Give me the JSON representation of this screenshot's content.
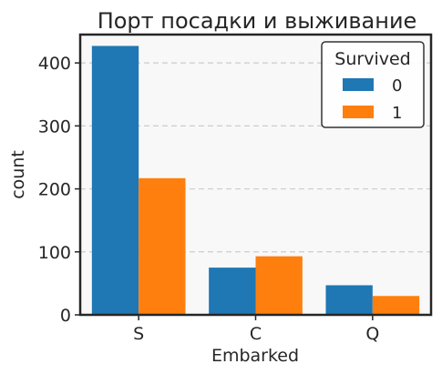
{
  "chart_data": {
    "type": "bar",
    "title": "Порт посадки и выживание",
    "xlabel": "Embarked",
    "ylabel": "count",
    "categories": [
      "S",
      "C",
      "Q"
    ],
    "series": [
      {
        "name": "0",
        "values": [
          427,
          75,
          47
        ],
        "color": "#1f77b4"
      },
      {
        "name": "1",
        "values": [
          217,
          93,
          30
        ],
        "color": "#ff7f0e"
      }
    ],
    "ylim": [
      0,
      445
    ],
    "yticks": [
      0,
      100,
      200,
      300,
      400
    ],
    "grid": true,
    "legend": {
      "title": "Survived",
      "placement": "top-right"
    }
  }
}
